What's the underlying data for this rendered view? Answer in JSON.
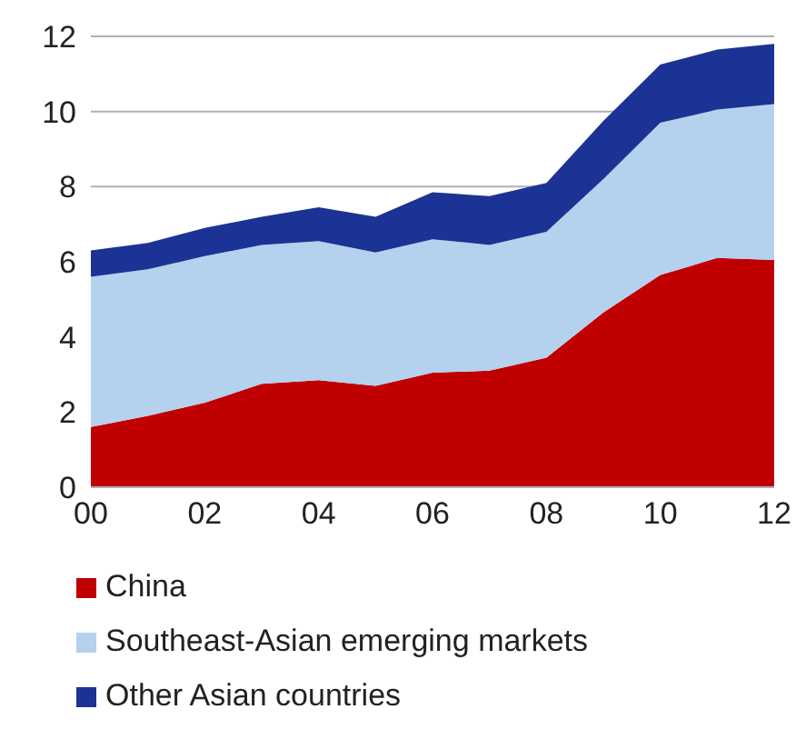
{
  "chart_data": {
    "type": "area",
    "stacked": true,
    "categories": [
      "00",
      null,
      "02",
      null,
      "04",
      null,
      "06",
      null,
      "08",
      null,
      "10",
      null,
      "12"
    ],
    "series": [
      {
        "name": "China",
        "color": "#c00000",
        "values": [
          1.6,
          1.9,
          2.25,
          2.75,
          2.85,
          2.7,
          3.05,
          3.1,
          3.45,
          4.65,
          5.65,
          6.1,
          6.05
        ]
      },
      {
        "name": "Southeast-Asian emerging markets",
        "color": "#b4d1ee",
        "values": [
          4.0,
          3.9,
          3.9,
          3.7,
          3.7,
          3.55,
          3.55,
          3.35,
          3.35,
          3.55,
          4.05,
          3.95,
          4.15
        ]
      },
      {
        "name": "Other Asian countries",
        "color": "#1b3394",
        "values": [
          0.7,
          0.7,
          0.75,
          0.75,
          0.9,
          0.95,
          1.25,
          1.3,
          1.3,
          1.55,
          1.55,
          1.6,
          1.6
        ]
      }
    ],
    "ylim": [
      0,
      12
    ],
    "yticks": [
      0,
      2,
      4,
      6,
      8,
      10,
      12
    ],
    "grid": "y",
    "legend": "bottom"
  }
}
